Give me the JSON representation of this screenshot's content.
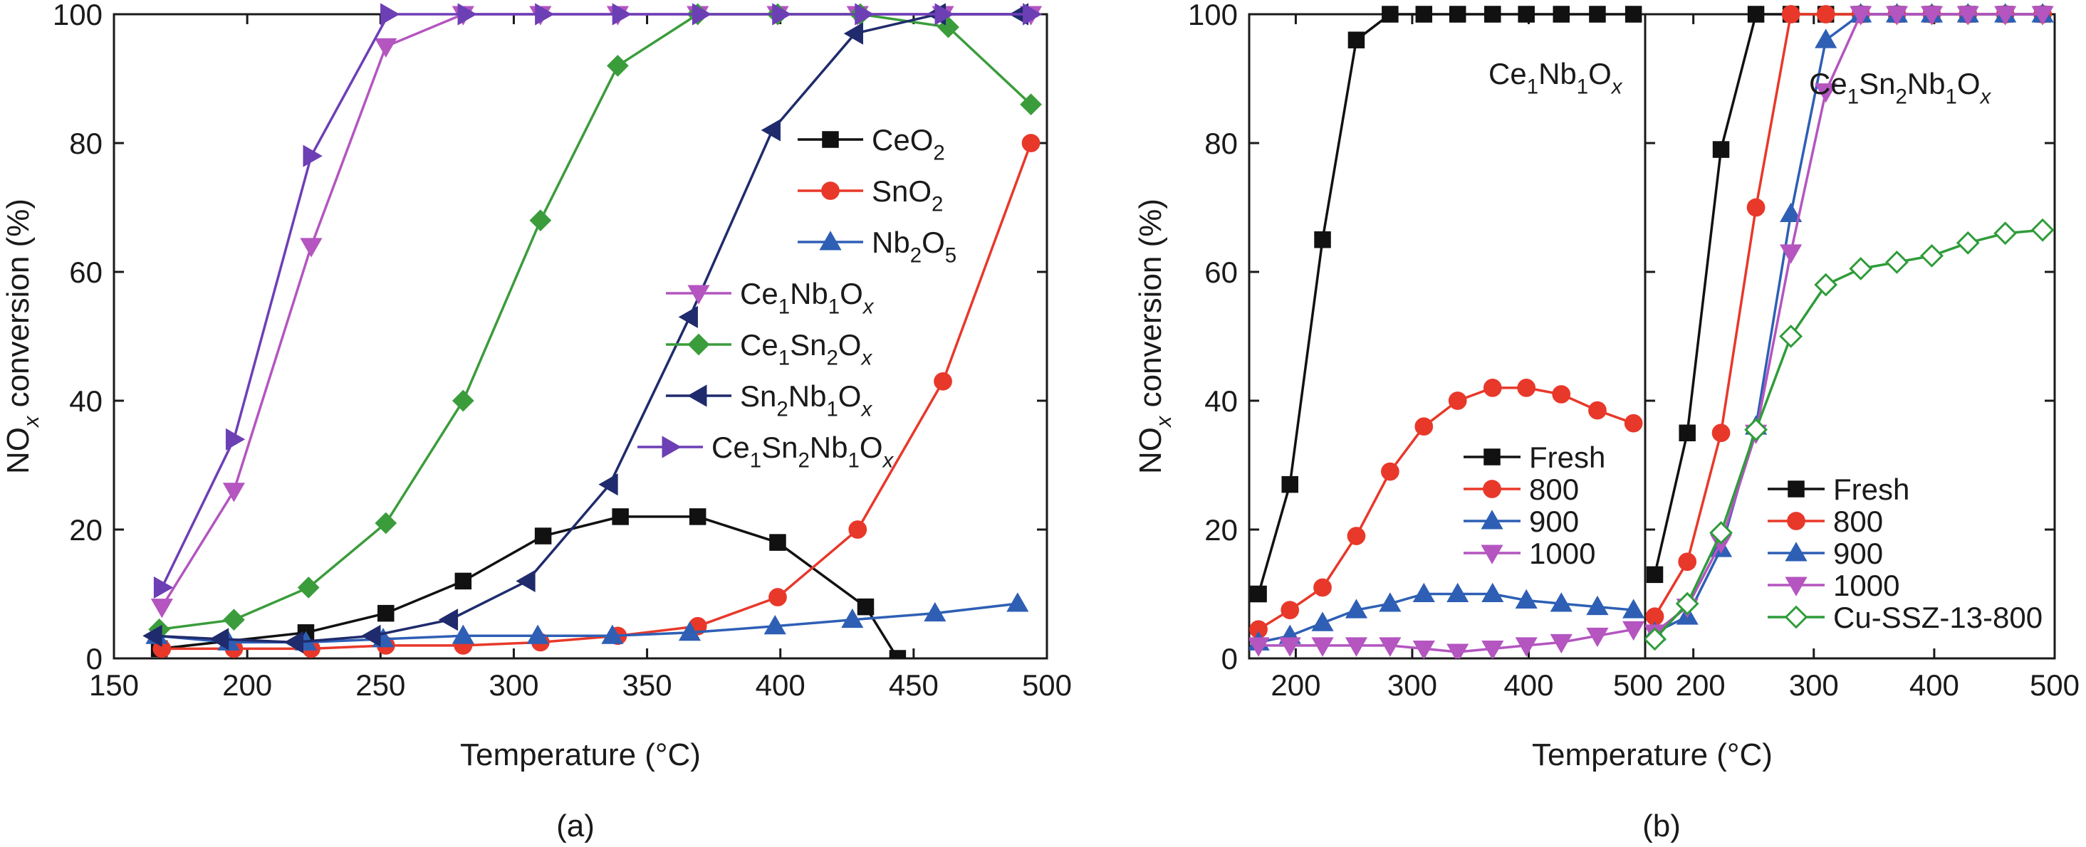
{
  "colors": {
    "black": "#111111",
    "red": "#e8382a",
    "blue": "#2e5fb5",
    "magenta": "#b455c0",
    "green": "#3b9c3b",
    "navy": "#1f2b6c",
    "purple": "#6d3fb5",
    "lightgreen": "#2f9c3a"
  },
  "chart_data": [
    {
      "type": "line",
      "panel_label": "(a)",
      "xlabel": "Temperature (°C)",
      "ylabel_parts": [
        {
          "t": "NO",
          "s": "normal"
        },
        {
          "t": "x",
          "s": "subitalic"
        },
        {
          "t": " conversion (%)",
          "s": "normal"
        }
      ],
      "xlim": [
        150,
        500
      ],
      "ylim": [
        0,
        100
      ],
      "xticks": [
        150,
        200,
        250,
        300,
        350,
        400,
        450,
        500
      ],
      "yticks": [
        0,
        20,
        40,
        60,
        80,
        100
      ],
      "legend_position": "right-center",
      "series": [
        {
          "name": "CeO2",
          "label_parts": [
            {
              "t": "CeO",
              "s": "normal"
            },
            {
              "t": "2",
              "s": "sub"
            }
          ],
          "color": "#111111",
          "marker": "square",
          "filled": true,
          "x": [
            167,
            222,
            252,
            281,
            311,
            340,
            369,
            399,
            432,
            444
          ],
          "y": [
            1.5,
            4,
            7,
            12,
            19,
            22,
            22,
            18,
            8,
            0
          ]
        },
        {
          "name": "SnO2",
          "label_parts": [
            {
              "t": "SnO",
              "s": "normal"
            },
            {
              "t": "2",
              "s": "sub"
            }
          ],
          "color": "#e8382a",
          "marker": "circle",
          "filled": true,
          "x": [
            168,
            195,
            224,
            252,
            281,
            310,
            339,
            369,
            399,
            429,
            461,
            494
          ],
          "y": [
            1.5,
            1.5,
            1.5,
            2,
            2,
            2.5,
            3.5,
            5,
            9.5,
            20,
            43,
            80
          ]
        },
        {
          "name": "Nb2O5",
          "label_parts": [
            {
              "t": "Nb",
              "s": "normal"
            },
            {
              "t": "2",
              "s": "sub"
            },
            {
              "t": "O",
              "s": "normal"
            },
            {
              "t": "5",
              "s": "sub"
            }
          ],
          "color": "#2e5fb5",
          "marker": "triangle-up",
          "filled": true,
          "x": [
            166,
            193,
            222,
            251,
            281,
            309,
            337,
            366,
            398,
            427,
            458,
            489
          ],
          "y": [
            3.5,
            2.5,
            2.5,
            3,
            3.5,
            3.5,
            3.5,
            4,
            5,
            6,
            7,
            8.5
          ]
        },
        {
          "name": "Ce1Nb1Ox",
          "label_parts": [
            {
              "t": "Ce",
              "s": "normal"
            },
            {
              "t": "1",
              "s": "sub"
            },
            {
              "t": "Nb",
              "s": "normal"
            },
            {
              "t": "1",
              "s": "sub"
            },
            {
              "t": "O",
              "s": "normal"
            },
            {
              "t": "x",
              "s": "subitalic"
            }
          ],
          "color": "#b455c0",
          "marker": "triangle-down",
          "filled": true,
          "x": [
            168,
            195,
            224,
            252,
            281,
            310,
            339,
            369,
            399,
            429,
            461,
            494
          ],
          "y": [
            8,
            26,
            64,
            95,
            100,
            100,
            100,
            100,
            100,
            100,
            100,
            100
          ]
        },
        {
          "name": "Ce1Sn2Ox",
          "label_parts": [
            {
              "t": "Ce",
              "s": "normal"
            },
            {
              "t": "1",
              "s": "sub"
            },
            {
              "t": "Sn",
              "s": "normal"
            },
            {
              "t": "2",
              "s": "sub"
            },
            {
              "t": "O",
              "s": "normal"
            },
            {
              "t": "x",
              "s": "subitalic"
            }
          ],
          "color": "#3b9c3b",
          "marker": "diamond",
          "filled": true,
          "x": [
            167,
            195,
            223,
            252,
            281,
            310,
            339,
            369,
            399,
            430,
            463,
            494
          ],
          "y": [
            4.5,
            6,
            11,
            21,
            40,
            68,
            92,
            100,
            100,
            100,
            98,
            86
          ]
        },
        {
          "name": "Sn2Nb1Ox",
          "label_parts": [
            {
              "t": "Sn",
              "s": "normal"
            },
            {
              "t": "2",
              "s": "sub"
            },
            {
              "t": "Nb",
              "s": "normal"
            },
            {
              "t": "1",
              "s": "sub"
            },
            {
              "t": "O",
              "s": "normal"
            },
            {
              "t": "x",
              "s": "subitalic"
            }
          ],
          "color": "#1f2b6c",
          "marker": "triangle-left",
          "filled": true,
          "x": [
            165,
            190,
            218,
            247,
            276,
            305,
            336,
            366,
            397,
            428,
            459,
            490
          ],
          "y": [
            3.5,
            3,
            2.5,
            3.5,
            6,
            12,
            27,
            53,
            82,
            97,
            100,
            100
          ]
        },
        {
          "name": "Ce1Sn2Nb1Ox",
          "label_parts": [
            {
              "t": "Ce",
              "s": "normal"
            },
            {
              "t": "1",
              "s": "sub"
            },
            {
              "t": "Sn",
              "s": "normal"
            },
            {
              "t": "2",
              "s": "sub"
            },
            {
              "t": "Nb",
              "s": "normal"
            },
            {
              "t": "1",
              "s": "sub"
            },
            {
              "t": "O",
              "s": "normal"
            },
            {
              "t": "x",
              "s": "subitalic"
            }
          ],
          "color": "#6d3fb5",
          "marker": "triangle-right",
          "filled": true,
          "x": [
            168,
            195,
            224,
            253,
            282,
            311,
            340,
            370,
            400,
            431,
            461,
            494
          ],
          "y": [
            11,
            34,
            78,
            100,
            100,
            100,
            100,
            100,
            100,
            100,
            100,
            100
          ]
        }
      ]
    },
    {
      "type": "line",
      "panel_label": "(b)",
      "xlabel": "Temperature (°C)",
      "ylabel_parts": [
        {
          "t": "NO",
          "s": "normal"
        },
        {
          "t": "x",
          "s": "subitalic"
        },
        {
          "t": " conversion (%)",
          "s": "normal"
        }
      ],
      "ylim": [
        0,
        100
      ],
      "yticks": [
        0,
        20,
        40,
        60,
        80,
        100
      ],
      "subplots": [
        {
          "title_parts": [
            {
              "t": "Ce",
              "s": "normal"
            },
            {
              "t": "1",
              "s": "sub"
            },
            {
              "t": "Nb",
              "s": "normal"
            },
            {
              "t": "1",
              "s": "sub"
            },
            {
              "t": "O",
              "s": "normal"
            },
            {
              "t": "x",
              "s": "subitalic"
            }
          ],
          "xlim": [
            160,
            500
          ],
          "xticks": [
            200,
            300,
            400,
            500
          ],
          "legend_position": "lower-right",
          "series": [
            {
              "name": "Fresh",
              "label_parts": [
                {
                  "t": "Fresh",
                  "s": "normal"
                }
              ],
              "color": "#111111",
              "marker": "square",
              "filled": true,
              "x": [
                168,
                195,
                223,
                252,
                281,
                310,
                339,
                369,
                398,
                428,
                459,
                490
              ],
              "y": [
                10,
                27,
                65,
                96,
                100,
                100,
                100,
                100,
                100,
                100,
                100,
                100
              ]
            },
            {
              "name": "800",
              "label_parts": [
                {
                  "t": "800",
                  "s": "normal"
                }
              ],
              "color": "#e8382a",
              "marker": "circle",
              "filled": true,
              "x": [
                168,
                195,
                223,
                252,
                281,
                310,
                339,
                369,
                398,
                428,
                459,
                490
              ],
              "y": [
                4.5,
                7.5,
                11,
                19,
                29,
                36,
                40,
                42,
                42,
                41,
                38.5,
                36.5
              ]
            },
            {
              "name": "900",
              "label_parts": [
                {
                  "t": "900",
                  "s": "normal"
                }
              ],
              "color": "#2e5fb5",
              "marker": "triangle-up",
              "filled": true,
              "x": [
                168,
                195,
                223,
                252,
                281,
                310,
                339,
                369,
                398,
                428,
                459,
                490
              ],
              "y": [
                2.5,
                3.5,
                5.5,
                7.5,
                8.5,
                10,
                10,
                10,
                9,
                8.5,
                8,
                7.5
              ]
            },
            {
              "name": "1000",
              "label_parts": [
                {
                  "t": "1000",
                  "s": "normal"
                }
              ],
              "color": "#b455c0",
              "marker": "triangle-down",
              "filled": true,
              "x": [
                168,
                195,
                223,
                252,
                281,
                310,
                339,
                369,
                398,
                428,
                459,
                490
              ],
              "y": [
                2,
                2,
                2,
                2,
                2,
                1.5,
                1,
                1.5,
                2,
                2.5,
                3.5,
                4.5
              ]
            }
          ]
        },
        {
          "title_parts": [
            {
              "t": "Ce",
              "s": "normal"
            },
            {
              "t": "1",
              "s": "sub"
            },
            {
              "t": "Sn",
              "s": "normal"
            },
            {
              "t": "2",
              "s": "sub"
            },
            {
              "t": "Nb",
              "s": "normal"
            },
            {
              "t": "1",
              "s": "sub"
            },
            {
              "t": "O",
              "s": "normal"
            },
            {
              "t": "x",
              "s": "subitalic"
            }
          ],
          "xlim": [
            160,
            500
          ],
          "xticks": [
            200,
            300,
            400,
            500
          ],
          "legend_position": "lower-left",
          "series": [
            {
              "name": "Fresh",
              "label_parts": [
                {
                  "t": "Fresh",
                  "s": "normal"
                }
              ],
              "color": "#111111",
              "marker": "square",
              "filled": true,
              "x": [
                168,
                195,
                223,
                252,
                281,
                310,
                339,
                369,
                398,
                428,
                459,
                490
              ],
              "y": [
                13,
                35,
                79,
                100,
                100,
                100,
                100,
                100,
                100,
                100,
                100,
                100
              ]
            },
            {
              "name": "800",
              "label_parts": [
                {
                  "t": "800",
                  "s": "normal"
                }
              ],
              "color": "#e8382a",
              "marker": "circle",
              "filled": true,
              "x": [
                168,
                195,
                223,
                252,
                281,
                310,
                339,
                369,
                398,
                428,
                459,
                490
              ],
              "y": [
                6.5,
                15,
                35,
                70,
                100,
                100,
                100,
                100,
                100,
                100,
                100,
                100
              ]
            },
            {
              "name": "900",
              "label_parts": [
                {
                  "t": "900",
                  "s": "normal"
                }
              ],
              "color": "#2e5fb5",
              "marker": "triangle-up",
              "filled": true,
              "x": [
                168,
                195,
                223,
                252,
                281,
                310,
                339,
                369,
                398,
                428,
                459,
                490
              ],
              "y": [
                4,
                6.5,
                17,
                36,
                69,
                96,
                100,
                100,
                100,
                100,
                100,
                100
              ]
            },
            {
              "name": "1000",
              "label_parts": [
                {
                  "t": "1000",
                  "s": "normal"
                }
              ],
              "color": "#b455c0",
              "marker": "triangle-down",
              "filled": true,
              "x": [
                168,
                195,
                223,
                252,
                281,
                310,
                339,
                369,
                398,
                428,
                459,
                490
              ],
              "y": [
                4,
                8,
                18,
                35,
                63,
                88,
                100,
                100,
                100,
                100,
                100,
                100
              ]
            },
            {
              "name": "Cu-SSZ-13-800",
              "label_parts": [
                {
                  "t": "Cu-SSZ-13-800",
                  "s": "normal"
                }
              ],
              "color": "#2f9c3a",
              "marker": "diamond",
              "filled": false,
              "x": [
                168,
                195,
                223,
                252,
                281,
                310,
                339,
                369,
                398,
                428,
                459,
                490
              ],
              "y": [
                3,
                8.5,
                19.5,
                35.5,
                50,
                58,
                60.5,
                61.5,
                62.5,
                64.5,
                66,
                66.5
              ]
            }
          ]
        }
      ]
    }
  ]
}
